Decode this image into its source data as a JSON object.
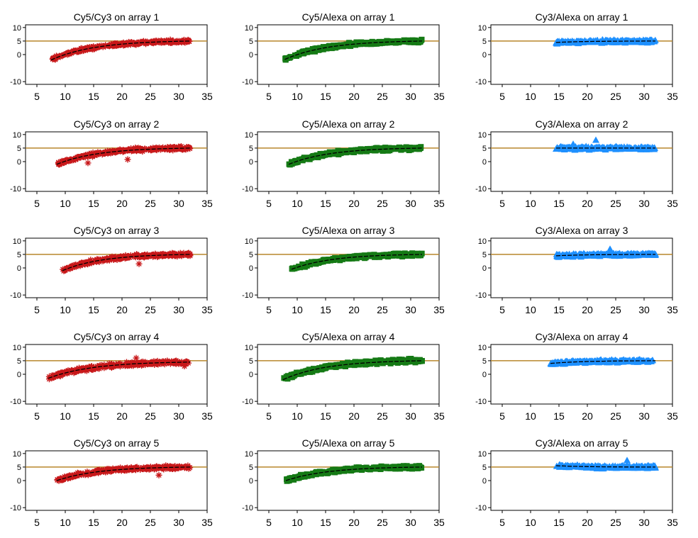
{
  "figure": {
    "colors": {
      "ref_line": "#b8862b",
      "fit_line": "#000000",
      "red": "#c8181a",
      "green": "#157a15",
      "blue": "#1e90ff"
    },
    "series_shapes": {
      "Cy5/Cy3": "asterisk",
      "Cy5/Alexa": "square",
      "Cy3/Alexa": "triangle"
    }
  },
  "chart_data": [
    {
      "type": "scatter",
      "title": "Cy5/Cy3 on array 1",
      "color": "#c8181a",
      "marker": "asterisk",
      "xlim": [
        3,
        35
      ],
      "ylim": [
        -11,
        11
      ],
      "xticks": [
        5,
        10,
        15,
        20,
        25,
        30,
        35
      ],
      "yticks": [
        10,
        5,
        0,
        -10
      ],
      "xmin": 7.5,
      "xmax": 32,
      "y_at_xmin": -2,
      "y_at_xmax": 5,
      "spread": 1.0,
      "ref_y": 5,
      "outliers": []
    },
    {
      "type": "scatter",
      "title": "Cy5/Alexa on array 1",
      "color": "#157a15",
      "marker": "square",
      "xlim": [
        3,
        35
      ],
      "ylim": [
        -11,
        11
      ],
      "xticks": [
        5,
        10,
        15,
        20,
        25,
        30,
        35
      ],
      "yticks": [
        10,
        5,
        0,
        -10
      ],
      "xmin": 7.8,
      "xmax": 32,
      "y_at_xmin": -1.8,
      "y_at_xmax": 5,
      "spread": 0.9,
      "ref_y": 5,
      "outliers": []
    },
    {
      "type": "scatter",
      "title": "Cy3/Alexa on array 1",
      "color": "#1e90ff",
      "marker": "triangle",
      "xlim": [
        3,
        35
      ],
      "ylim": [
        -11,
        11
      ],
      "xticks": [
        5,
        10,
        15,
        20,
        25,
        30,
        35
      ],
      "yticks": [
        10,
        5,
        0,
        -10
      ],
      "xmin": 14.5,
      "xmax": 32,
      "y_at_xmin": 4.5,
      "y_at_xmax": 5,
      "spread": 0.8,
      "ref_y": 5,
      "outliers": []
    },
    {
      "type": "scatter",
      "title": "Cy5/Cy3 on array 2",
      "color": "#c8181a",
      "marker": "asterisk",
      "xlim": [
        3,
        35
      ],
      "ylim": [
        -11,
        11
      ],
      "xticks": [
        5,
        10,
        15,
        20,
        25,
        30,
        35
      ],
      "yticks": [
        10,
        5,
        0,
        -10
      ],
      "xmin": 8.5,
      "xmax": 32,
      "y_at_xmin": -1,
      "y_at_xmax": 5,
      "spread": 1.0,
      "ref_y": 5,
      "outliers": [
        [
          14,
          -0.5
        ],
        [
          21,
          0.8
        ]
      ]
    },
    {
      "type": "scatter",
      "title": "Cy5/Alexa on array 2",
      "color": "#157a15",
      "marker": "square",
      "xlim": [
        3,
        35
      ],
      "ylim": [
        -11,
        11
      ],
      "xticks": [
        5,
        10,
        15,
        20,
        25,
        30,
        35
      ],
      "yticks": [
        10,
        5,
        0,
        -10
      ],
      "xmin": 8.5,
      "xmax": 32,
      "y_at_xmin": -1,
      "y_at_xmax": 5,
      "spread": 0.9,
      "ref_y": 5,
      "outliers": []
    },
    {
      "type": "scatter",
      "title": "Cy3/Alexa on array 2",
      "color": "#1e90ff",
      "marker": "triangle",
      "xlim": [
        3,
        35
      ],
      "ylim": [
        -11,
        11
      ],
      "xticks": [
        5,
        10,
        15,
        20,
        25,
        30,
        35
      ],
      "yticks": [
        10,
        5,
        0,
        -10
      ],
      "xmin": 14.5,
      "xmax": 32,
      "y_at_xmin": 5,
      "y_at_xmax": 5,
      "spread": 0.8,
      "ref_y": 5,
      "outliers": [
        [
          21.5,
          8
        ],
        [
          17.5,
          6.5
        ]
      ]
    },
    {
      "type": "scatter",
      "title": "Cy5/Cy3 on array 3",
      "color": "#c8181a",
      "marker": "asterisk",
      "xlim": [
        3,
        35
      ],
      "ylim": [
        -11,
        11
      ],
      "xticks": [
        5,
        10,
        15,
        20,
        25,
        30,
        35
      ],
      "yticks": [
        10,
        5,
        0,
        -10
      ],
      "xmin": 9.5,
      "xmax": 32,
      "y_at_xmin": -1,
      "y_at_xmax": 5,
      "spread": 1.0,
      "ref_y": 5,
      "outliers": [
        [
          10,
          -0.8
        ],
        [
          23,
          1.5
        ]
      ]
    },
    {
      "type": "scatter",
      "title": "Cy5/Alexa on array 3",
      "color": "#157a15",
      "marker": "square",
      "xlim": [
        3,
        35
      ],
      "ylim": [
        -11,
        11
      ],
      "xticks": [
        5,
        10,
        15,
        20,
        25,
        30,
        35
      ],
      "yticks": [
        10,
        5,
        0,
        -10
      ],
      "xmin": 9,
      "xmax": 32,
      "y_at_xmin": -0.5,
      "y_at_xmax": 5,
      "spread": 0.9,
      "ref_y": 5,
      "outliers": []
    },
    {
      "type": "scatter",
      "title": "Cy3/Alexa on array 3",
      "color": "#1e90ff",
      "marker": "triangle",
      "xlim": [
        3,
        35
      ],
      "ylim": [
        -11,
        11
      ],
      "xticks": [
        5,
        10,
        15,
        20,
        25,
        30,
        35
      ],
      "yticks": [
        10,
        5,
        0,
        -10
      ],
      "xmin": 14.5,
      "xmax": 32,
      "y_at_xmin": 4.5,
      "y_at_xmax": 5,
      "spread": 0.8,
      "ref_y": 5,
      "outliers": [
        [
          24,
          7
        ]
      ]
    },
    {
      "type": "scatter",
      "title": "Cy5/Cy3 on array 4",
      "color": "#c8181a",
      "marker": "asterisk",
      "xlim": [
        3,
        35
      ],
      "ylim": [
        -11,
        11
      ],
      "xticks": [
        5,
        10,
        15,
        20,
        25,
        30,
        35
      ],
      "yticks": [
        10,
        5,
        0,
        -10
      ],
      "xmin": 7,
      "xmax": 32,
      "y_at_xmin": -1.5,
      "y_at_xmax": 4.5,
      "spread": 1.1,
      "ref_y": 5,
      "outliers": [
        [
          22.5,
          6
        ],
        [
          31,
          3
        ]
      ]
    },
    {
      "type": "scatter",
      "title": "Cy5/Alexa on array 4",
      "color": "#157a15",
      "marker": "square",
      "xlim": [
        3,
        35
      ],
      "ylim": [
        -11,
        11
      ],
      "xticks": [
        5,
        10,
        15,
        20,
        25,
        30,
        35
      ],
      "yticks": [
        10,
        5,
        0,
        -10
      ],
      "xmin": 7.5,
      "xmax": 32,
      "y_at_xmin": -2,
      "y_at_xmax": 5,
      "spread": 1.1,
      "ref_y": 5,
      "outliers": []
    },
    {
      "type": "scatter",
      "title": "Cy3/Alexa on array 4",
      "color": "#1e90ff",
      "marker": "triangle",
      "xlim": [
        3,
        35
      ],
      "ylim": [
        -11,
        11
      ],
      "xticks": [
        5,
        10,
        15,
        20,
        25,
        30,
        35
      ],
      "yticks": [
        10,
        5,
        0,
        -10
      ],
      "xmin": 13.5,
      "xmax": 32,
      "y_at_xmin": 4,
      "y_at_xmax": 5,
      "spread": 0.8,
      "ref_y": 5,
      "outliers": []
    },
    {
      "type": "scatter",
      "title": "Cy5/Cy3 on array 5",
      "color": "#c8181a",
      "marker": "asterisk",
      "xlim": [
        3,
        35
      ],
      "ylim": [
        -11,
        11
      ],
      "xticks": [
        5,
        10,
        15,
        20,
        25,
        30,
        35
      ],
      "yticks": [
        10,
        5,
        0,
        -10
      ],
      "xmin": 8.5,
      "xmax": 32,
      "y_at_xmin": 0,
      "y_at_xmax": 5,
      "spread": 1.0,
      "ref_y": 5,
      "outliers": [
        [
          26.5,
          2
        ]
      ]
    },
    {
      "type": "scatter",
      "title": "Cy5/Alexa on array 5",
      "color": "#157a15",
      "marker": "square",
      "xlim": [
        3,
        35
      ],
      "ylim": [
        -11,
        11
      ],
      "xticks": [
        5,
        10,
        15,
        20,
        25,
        30,
        35
      ],
      "yticks": [
        10,
        5,
        0,
        -10
      ],
      "xmin": 8,
      "xmax": 32,
      "y_at_xmin": 0,
      "y_at_xmax": 5,
      "spread": 0.9,
      "ref_y": 5,
      "outliers": []
    },
    {
      "type": "scatter",
      "title": "Cy3/Alexa on array 5",
      "color": "#1e90ff",
      "marker": "triangle",
      "xlim": [
        3,
        35
      ],
      "ylim": [
        -11,
        11
      ],
      "xticks": [
        5,
        10,
        15,
        20,
        25,
        30,
        35
      ],
      "yticks": [
        10,
        5,
        0,
        -10
      ],
      "xmin": 14.5,
      "xmax": 32,
      "y_at_xmin": 5.5,
      "y_at_xmax": 5,
      "spread": 0.8,
      "ref_y": 5,
      "outliers": [
        [
          27,
          7.5
        ]
      ]
    }
  ]
}
